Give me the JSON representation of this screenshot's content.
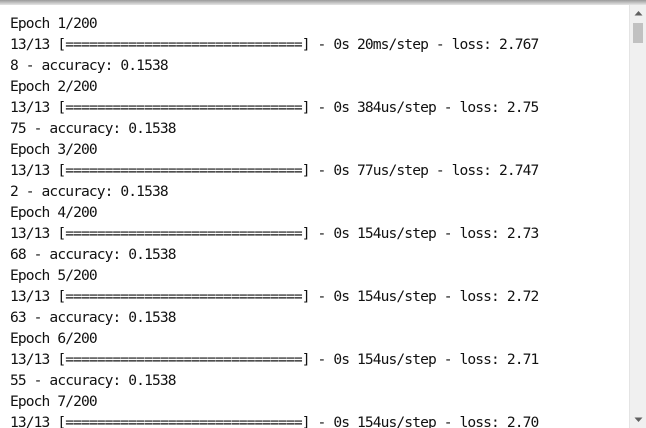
{
  "console": {
    "lines": [
      "Epoch 1/200",
      "13/13 [==============================] - 0s 20ms/step - loss: 2.767",
      "8 - accuracy: 0.1538",
      "Epoch 2/200",
      "13/13 [==============================] - 0s 384us/step - loss: 2.75",
      "75 - accuracy: 0.1538",
      "Epoch 3/200",
      "13/13 [==============================] - 0s 77us/step - loss: 2.747",
      "2 - accuracy: 0.1538",
      "Epoch 4/200",
      "13/13 [==============================] - 0s 154us/step - loss: 2.73",
      "68 - accuracy: 0.1538",
      "Epoch 5/200",
      "13/13 [==============================] - 0s 154us/step - loss: 2.72",
      "63 - accuracy: 0.1538",
      "Epoch 6/200",
      "13/13 [==============================] - 0s 154us/step - loss: 2.71",
      "55 - accuracy: 0.1538",
      "Epoch 7/200",
      "13/13 [==============================] - 0s 154us/step - loss: 2.70"
    ]
  },
  "scrollbar": {
    "up_icon": "chevron-up-icon",
    "down_icon": "chevron-down-icon",
    "thumb_color": "#c1c1c1",
    "track_color": "#f0f0f0"
  }
}
